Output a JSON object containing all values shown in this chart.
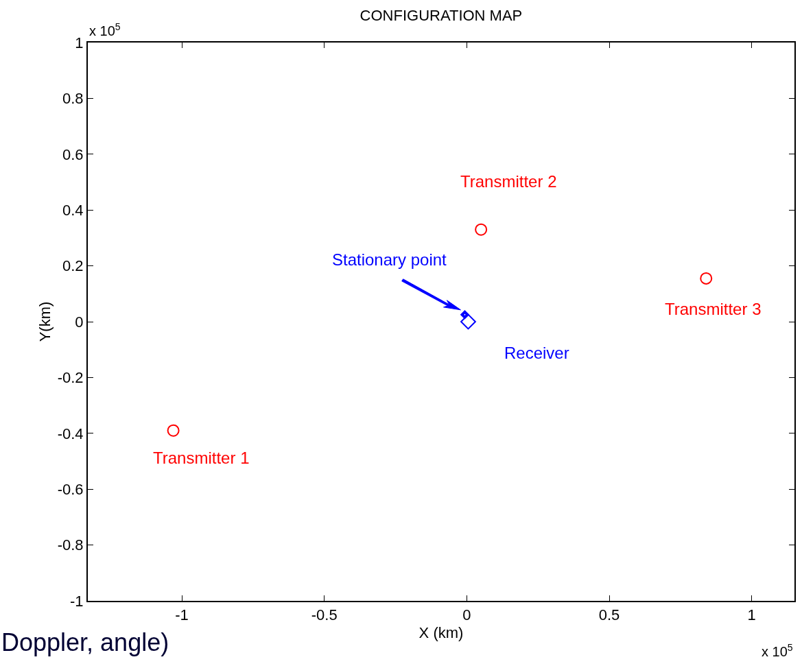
{
  "chart_data": {
    "type": "scatter",
    "title": "CONFIGURATION MAP",
    "xlabel": "X (km)",
    "ylabel": "Y(km)",
    "xlim": [
      -1.33,
      1.15
    ],
    "ylim": [
      -1,
      1
    ],
    "xticks": [
      -1,
      -0.5,
      0,
      0.5,
      1
    ],
    "yticks": [
      -1,
      -0.8,
      -0.6,
      -0.4,
      -0.2,
      0,
      0.2,
      0.4,
      0.6,
      0.8,
      1
    ],
    "series": [
      {
        "color": "#ff0000",
        "marker": "circle",
        "x": [
          -1.03,
          0.05,
          0.84
        ],
        "values": [
          -0.39,
          0.33,
          0.155
        ]
      },
      {
        "color": "#0000ff",
        "marker": "diamond",
        "x": [
          0.005
        ],
        "values": [
          0.0
        ]
      },
      {
        "color": "#0000ff",
        "marker": "diamond",
        "x": [
          -0.007
        ],
        "values": [
          0.025
        ]
      }
    ],
    "annotations": [
      {
        "text": "Transmitter 1",
        "x": -1.03,
        "y": -0.39
      },
      {
        "text": "Transmitter 2",
        "x": 0.05,
        "y": 0.33
      },
      {
        "text": "Transmitter 3",
        "x": 0.84,
        "y": 0.155
      },
      {
        "text": "Receiver",
        "x": 0.005,
        "y": 0.0
      },
      {
        "text": "Stationary point",
        "x": -0.007,
        "y": 0.025
      },
      "x 10$^{5}$",
      "x 10$^{5}$",
      "Doppler, angle)"
    ]
  }
}
